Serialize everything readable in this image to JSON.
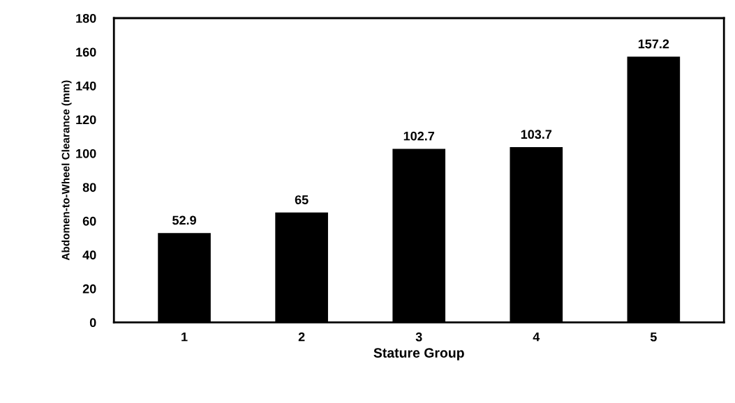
{
  "chart_data": {
    "type": "bar",
    "xlabel": "Stature Group",
    "ylabel": "Abdomen-to-Wheel Clearance (mm)",
    "categories": [
      "1",
      "2",
      "3",
      "4",
      "5"
    ],
    "values": [
      52.9,
      65,
      102.7,
      103.7,
      157.2
    ],
    "color": "#000000",
    "ylim": [
      0,
      180
    ],
    "yticks": [
      0,
      20,
      40,
      60,
      80,
      100,
      120,
      140,
      160,
      180
    ],
    "data_labels": true,
    "grid": false,
    "legend": false
  }
}
